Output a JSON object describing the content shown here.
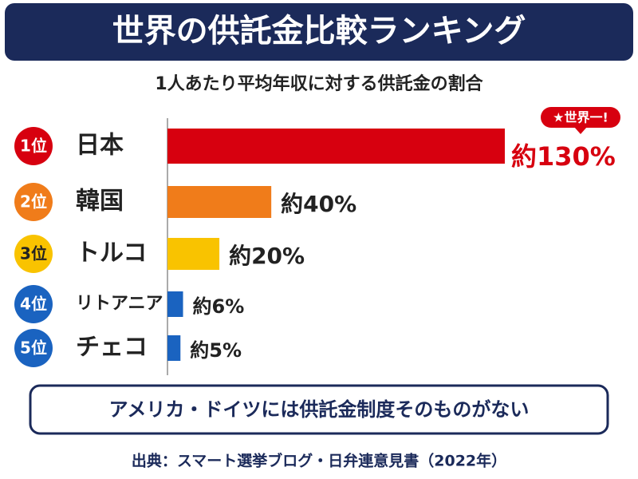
{
  "chart_data": {
    "type": "bar",
    "orientation": "horizontal",
    "title": "世界の供託金比較ランキング",
    "subtitle": "1人あたり平均年収に対する供託金の割合",
    "ranks": [
      "1位",
      "2位",
      "3位",
      "4位",
      "5位"
    ],
    "categories": [
      "日本",
      "韓国",
      "トルコ",
      "リトアニア",
      "チェコ"
    ],
    "values": [
      130,
      40,
      20,
      6,
      5
    ],
    "value_labels": [
      "約130%",
      "約40%",
      "約20%",
      "約6%",
      "約5%"
    ],
    "colors": [
      "#d7000f",
      "#f07c1a",
      "#f9c300",
      "#1a63c0",
      "#1a63c0"
    ],
    "xlim": [
      0,
      130
    ],
    "badge": "★世界一!",
    "note": "アメリカ・ドイツには供託金制度そのものがない",
    "source": "出典：スマート選挙ブログ・日弁連意見書（2022年）"
  }
}
